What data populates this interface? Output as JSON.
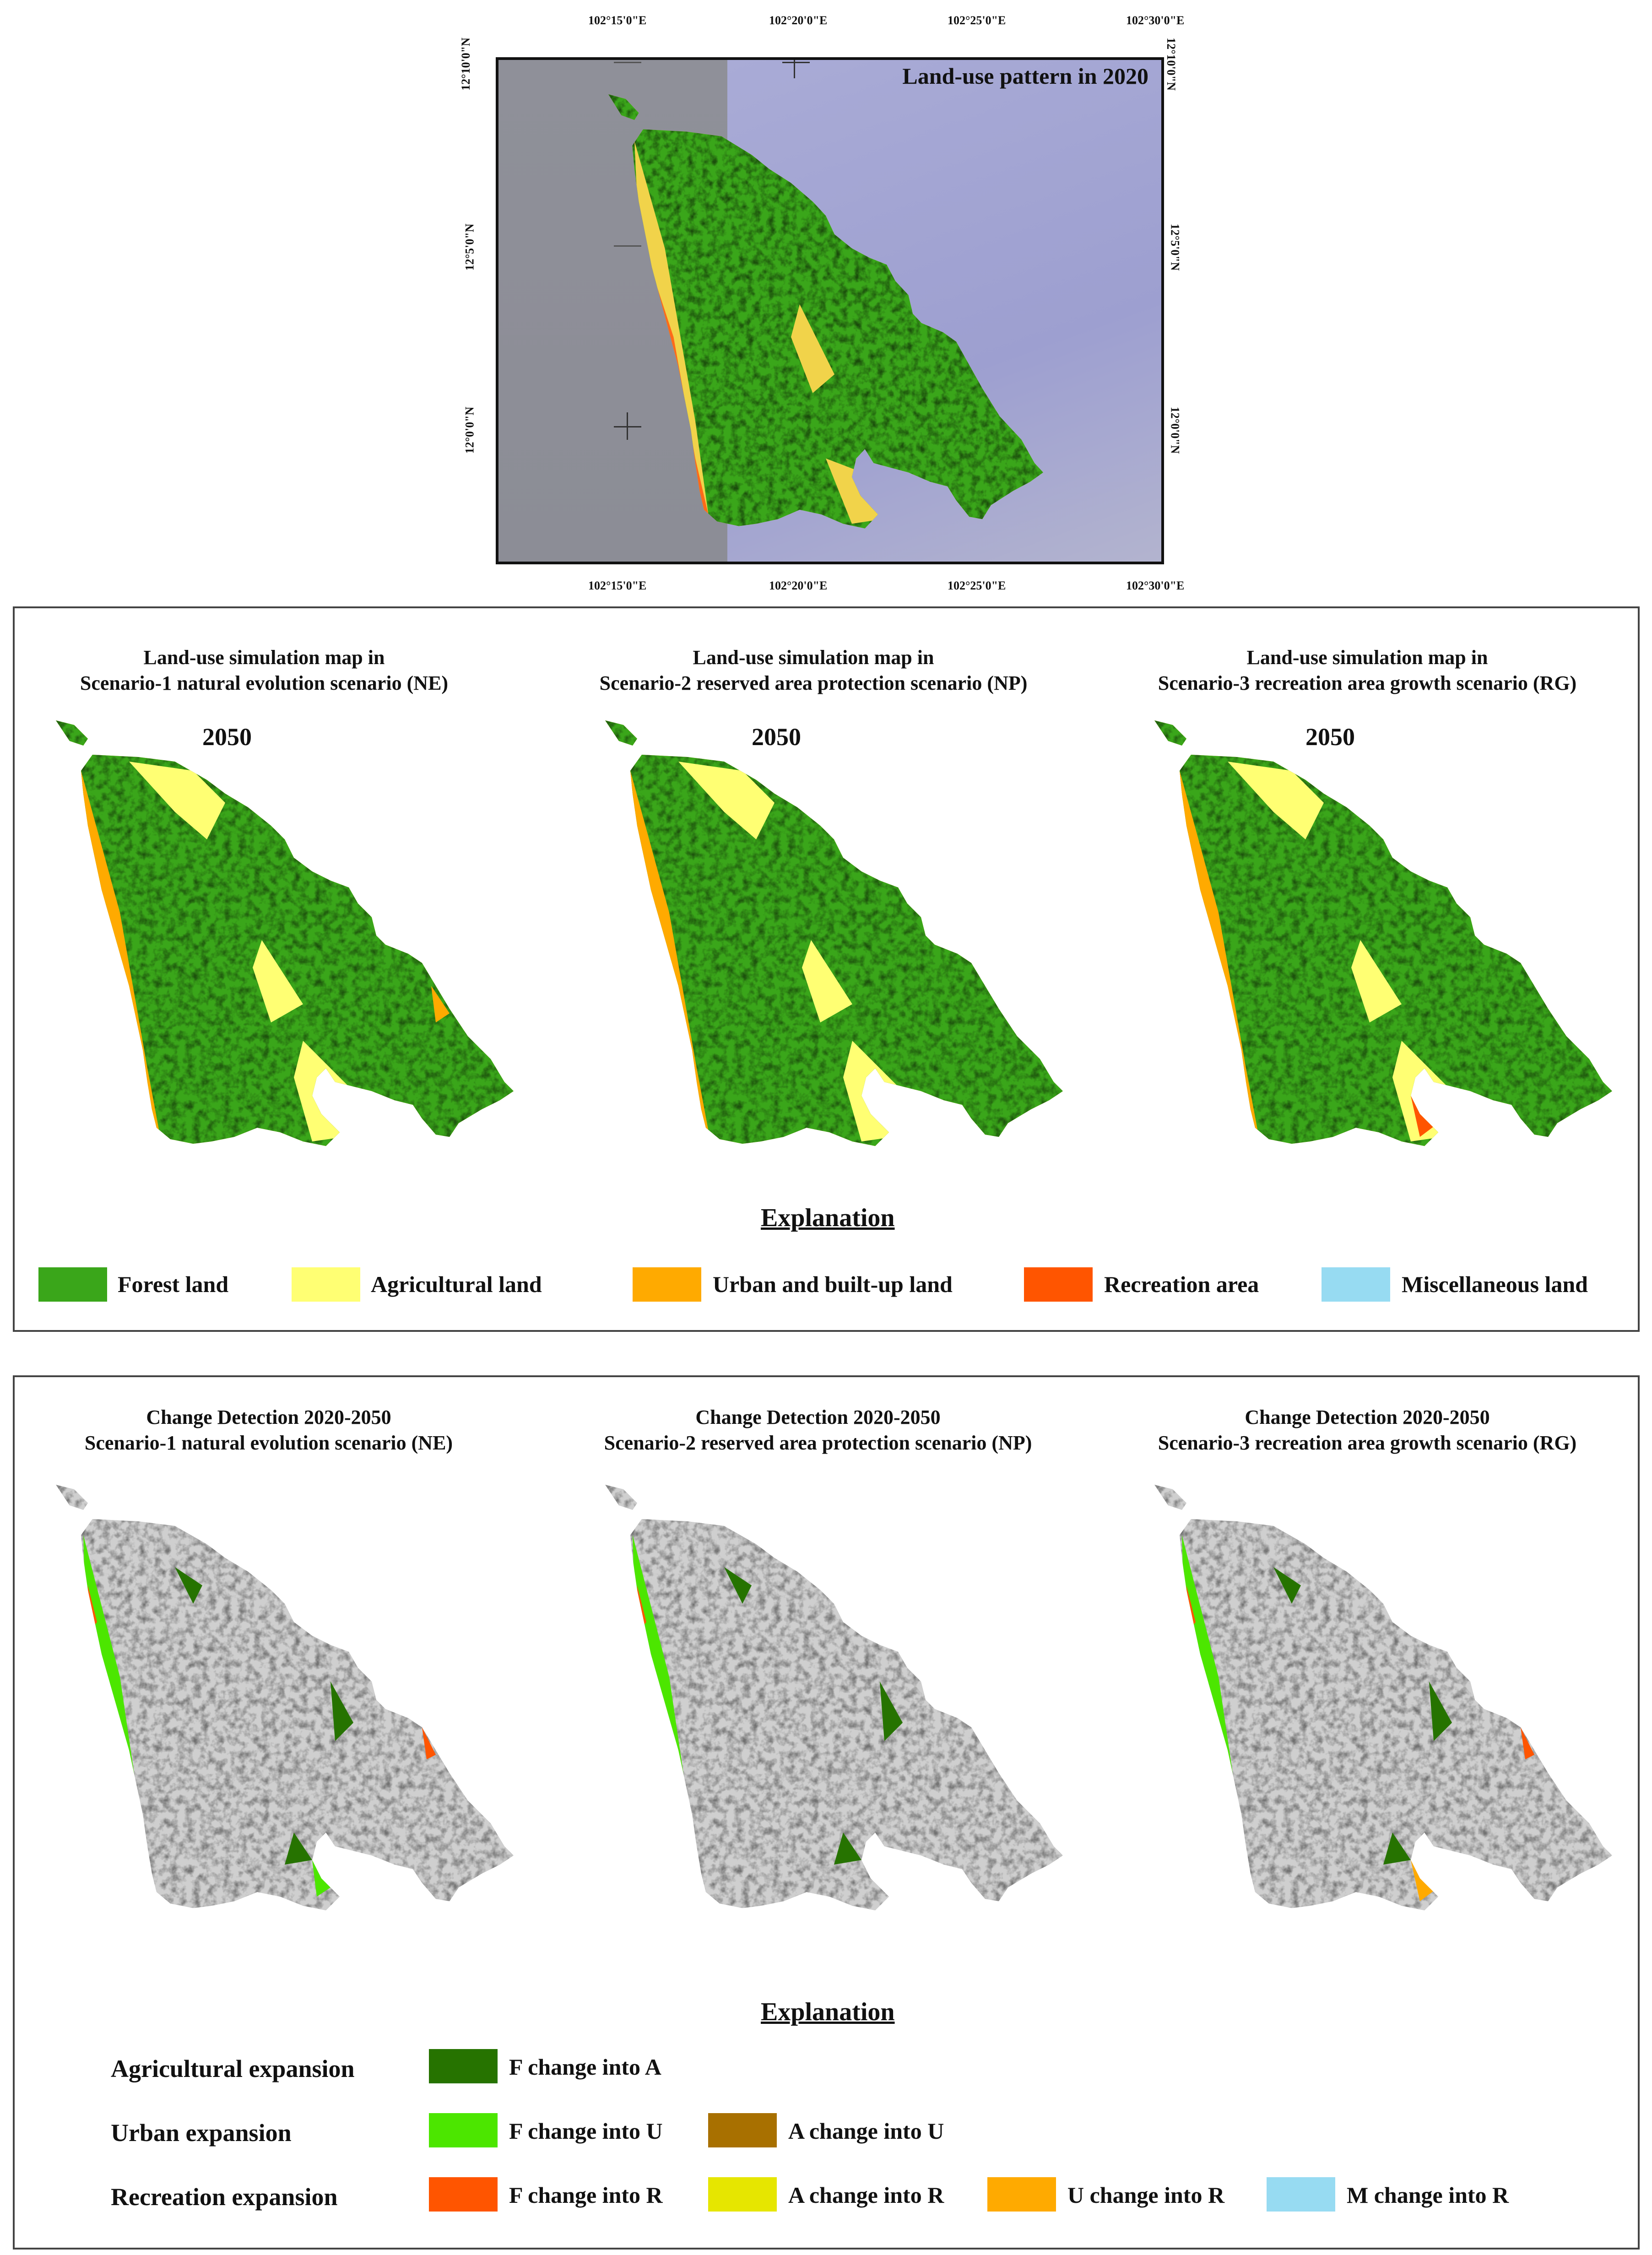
{
  "top_map": {
    "title": "Land-use pattern in 2020",
    "lon_ticks": [
      "102°15'0\"E",
      "102°20'0\"E",
      "102°25'0\"E",
      "102°30'0\"E"
    ],
    "lat_ticks": [
      "12°10'0\"N",
      "12°5'0\"N",
      "12°0'0\"N"
    ]
  },
  "simulation_panel": {
    "maps": [
      {
        "title_line1": "Land-use simulation map in",
        "title_line2": "Scenario-1 natural evolution scenario (NE)",
        "year": "2050"
      },
      {
        "title_line1": "Land-use simulation map in",
        "title_line2": "Scenario-2 reserved area protection scenario (NP)",
        "year": "2050"
      },
      {
        "title_line1": "Land-use simulation map in",
        "title_line2": "Scenario-3 recreation area growth scenario (RG)",
        "year": "2050"
      }
    ],
    "legend_title": "Explanation",
    "legend": [
      {
        "label": "Forest land",
        "color": "#3aa61a"
      },
      {
        "label": "Agricultural land",
        "color": "#ffff73"
      },
      {
        "label": "Urban and built-up land",
        "color": "#ffaa00"
      },
      {
        "label": "Recreation area",
        "color": "#ff5500"
      },
      {
        "label": "Miscellaneous land",
        "color": "#97dbf2"
      }
    ]
  },
  "change_panel": {
    "maps": [
      {
        "title_line1": "Change Detection 2020-2050",
        "title_line2": "Scenario-1 natural evolution scenario (NE)"
      },
      {
        "title_line1": "Change Detection 2020-2050",
        "title_line2": "Scenario-2 reserved area protection scenario (NP)"
      },
      {
        "title_line1": "Change Detection 2020-2050",
        "title_line2": "Scenario-3 recreation area growth scenario (RG)"
      }
    ],
    "legend_title": "Explanation",
    "groups": [
      {
        "label": "Agricultural expansion",
        "items": [
          {
            "label": "F change into A",
            "color": "#267300"
          }
        ]
      },
      {
        "label": "Urban expansion",
        "items": [
          {
            "label": "F change into U",
            "color": "#4ce600"
          },
          {
            "label": "A change into U",
            "color": "#a87000"
          }
        ]
      },
      {
        "label": "Recreation expansion",
        "items": [
          {
            "label": "F change into R",
            "color": "#ff5500"
          },
          {
            "label": "A change into R",
            "color": "#e6e600"
          },
          {
            "label": "U change into R",
            "color": "#ffaa00"
          },
          {
            "label": "M change into R",
            "color": "#97dbf2"
          }
        ]
      }
    ]
  },
  "colors": {
    "sea": "#9a9fc8",
    "land_bg": "#8e8f96",
    "forest": "#3aa61a",
    "forest_dark": "#2f8a16",
    "agri": "#ffff73",
    "urban": "#ffaa00",
    "recreation": "#ff5500",
    "hill_gray": "#c8c8c8"
  }
}
